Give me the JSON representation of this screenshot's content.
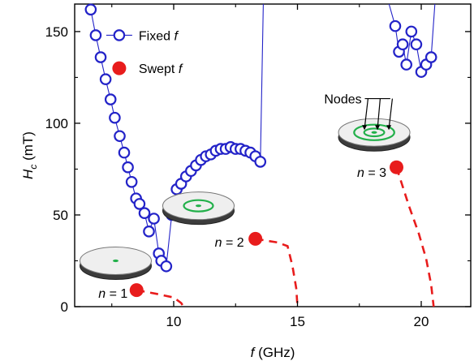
{
  "chart_data": {
    "type": "scatter",
    "xlabel": "f (GHz)",
    "ylabel": "Hc (mT)",
    "xlim": [
      6,
      22
    ],
    "ylim": [
      0,
      165
    ],
    "x_ticks": [
      10,
      15,
      20
    ],
    "y_ticks": [
      0,
      50,
      100,
      150
    ],
    "grid": false,
    "legend_position": "top-left",
    "series": [
      {
        "name": "Fixed f",
        "marker": "open-circle",
        "color": "#2323c8",
        "branches": [
          {
            "x": [
              6.65,
              6.85,
              7.05,
              7.25,
              7.45,
              7.62,
              7.82,
              8.0,
              8.15,
              8.3,
              8.48,
              8.62,
              8.82,
              9.0,
              9.2,
              9.4,
              9.5,
              9.7,
              9.92,
              10.12,
              10.3,
              10.5,
              10.7,
              10.9,
              11.1,
              11.3,
              11.5,
              11.7,
              11.9,
              12.1,
              12.3,
              12.5,
              12.7,
              12.9,
              13.1,
              13.3,
              13.5
            ],
            "y": [
              162,
              148,
              136,
              124,
              113,
              103,
              93,
              84,
              76,
              68,
              59,
              56,
              51,
              41,
              48,
              29,
              25,
              22,
              50,
              64,
              67,
              71,
              74,
              77,
              80,
              82,
              83,
              85,
              86,
              86,
              87,
              86,
              86,
              85,
              84,
              82,
              79
            ],
            "line_end": [
              13.62,
              165
            ]
          },
          {
            "line_start": [
              18.7,
              165
            ],
            "x": [
              18.95,
              19.1,
              19.25,
              19.4,
              19.6,
              19.8,
              20.0,
              20.2,
              20.4
            ],
            "y": [
              153,
              139,
              143,
              132,
              150,
              143,
              128,
              132,
              136
            ],
            "line_end": [
              20.55,
              165
            ]
          }
        ]
      },
      {
        "name": "Swept f",
        "marker": "filled-circle",
        "color": "#e81c1c",
        "points": [
          {
            "x": 8.5,
            "y": 9,
            "label": "n = 1"
          },
          {
            "x": 13.3,
            "y": 37,
            "label": "n = 2"
          },
          {
            "x": 19.0,
            "y": 76,
            "label": "n = 3"
          }
        ],
        "dashed_curves": [
          {
            "x": [
              8.5,
              9.3,
              10.0,
              10.3,
              10.4
            ],
            "y": [
              9,
              7,
              5,
              2,
              0
            ]
          },
          {
            "x": [
              13.3,
              14.2,
              14.6,
              14.8,
              14.95,
              15.0
            ],
            "y": [
              37,
              35,
              33,
              22,
              10,
              0
            ]
          },
          {
            "x": [
              19.0,
              19.5,
              19.9,
              20.2,
              20.4,
              20.5
            ],
            "y": [
              76,
              55,
              40,
              26,
              12,
              0
            ]
          }
        ]
      }
    ],
    "annotations": [
      {
        "text": "Nodes",
        "x": 17.0,
        "y": 113
      },
      {
        "text": "n = 1",
        "x": 7.55,
        "y": 7
      },
      {
        "text": "n = 2",
        "x": 12.25,
        "y": 35
      },
      {
        "text": "n = 3",
        "x": 18.0,
        "y": 73
      }
    ],
    "insets": [
      {
        "mode": "n = 1",
        "rings": 0,
        "x": 7.0,
        "y": 25
      },
      {
        "mode": "n = 2",
        "rings": 1,
        "x": 11.0,
        "y": 55
      },
      {
        "mode": "n = 3",
        "rings": 2,
        "x": 18.1,
        "y": 95
      }
    ]
  }
}
